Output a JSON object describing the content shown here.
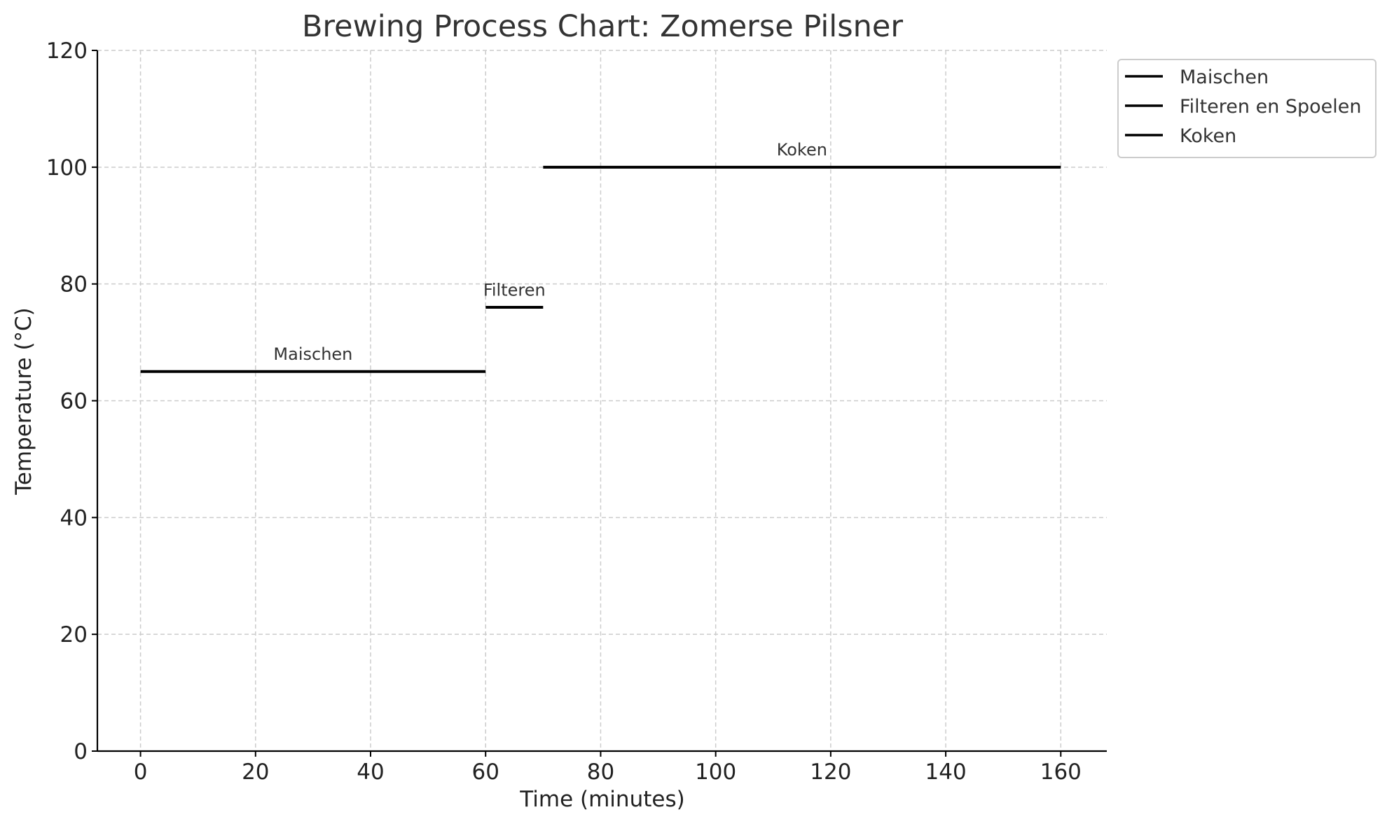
{
  "chart_data": {
    "type": "line",
    "title": "Brewing Process Chart: Zomerse Pilsner",
    "xlabel": "Time (minutes)",
    "ylabel": "Temperature (°C)",
    "xlim": [
      -7.5,
      168
    ],
    "ylim": [
      0,
      120
    ],
    "xticks": [
      0,
      20,
      40,
      60,
      80,
      100,
      120,
      140,
      160
    ],
    "yticks": [
      0,
      20,
      40,
      60,
      80,
      100,
      120
    ],
    "grid": true,
    "legend_position": "outside-top-right",
    "series": [
      {
        "name": "Maischen",
        "x": [
          0,
          60
        ],
        "y": [
          65,
          65
        ],
        "color": "#000000"
      },
      {
        "name": "Filteren en Spoelen",
        "x": [
          60,
          70
        ],
        "y": [
          76,
          76
        ],
        "color": "#000000"
      },
      {
        "name": "Koken",
        "x": [
          70,
          160
        ],
        "y": [
          100,
          100
        ],
        "color": "#000000"
      }
    ],
    "annotations": [
      {
        "text": "Maischen",
        "x": 30,
        "y": 67
      },
      {
        "text": "Filteren",
        "x": 65,
        "y": 78
      },
      {
        "text": "Koken",
        "x": 115,
        "y": 102
      }
    ]
  }
}
